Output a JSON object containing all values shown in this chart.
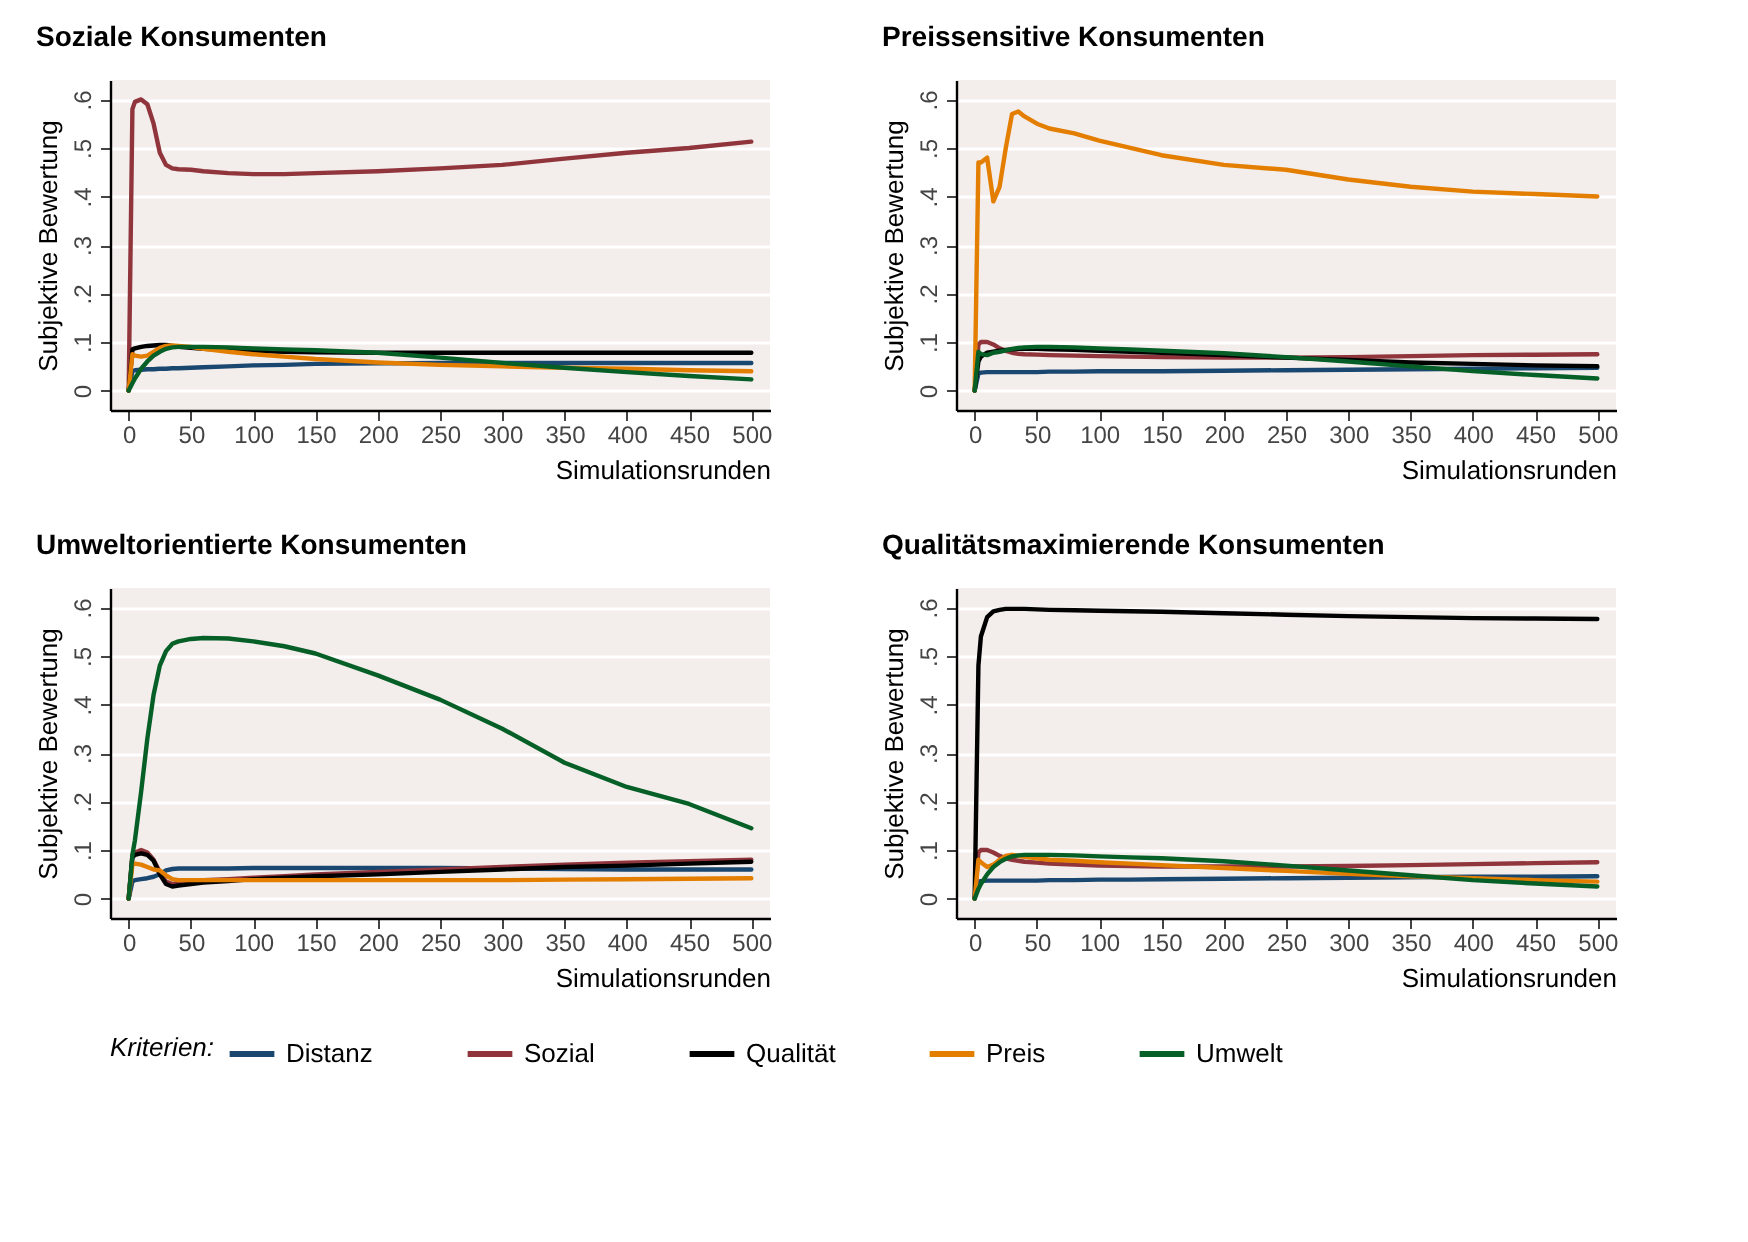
{
  "chart_data": [
    {
      "type": "line",
      "title": "Soziale Konsumenten",
      "xlabel": "Simulationsrunden",
      "ylabel": "Subjektive Bewertung",
      "xlim": [
        -15,
        515
      ],
      "ylim": [
        -0.04,
        0.64
      ],
      "xticks": [
        0,
        50,
        100,
        150,
        200,
        250,
        300,
        350,
        400,
        450,
        500
      ],
      "yticks": [
        {
          "value": 0,
          "label": "0"
        },
        {
          "value": 0.1,
          "label": ".1"
        },
        {
          "value": 0.2,
          "label": ".2"
        },
        {
          "value": 0.3,
          "label": ".3"
        },
        {
          "value": 0.4,
          "label": ".4"
        },
        {
          "value": 0.5,
          "label": ".5"
        },
        {
          "value": 0.6,
          "label": ".6"
        }
      ],
      "grid": "y",
      "legend": "bottom",
      "legend_title": "Kriterien:",
      "x": [
        0,
        3,
        5,
        10,
        15,
        20,
        25,
        30,
        35,
        40,
        50,
        60,
        80,
        100,
        125,
        150,
        200,
        250,
        300,
        350,
        400,
        450,
        500
      ],
      "series": [
        {
          "name": "Distanz",
          "color": "#1a476f",
          "values": [
            0,
            0.04,
            0.042,
            0.043,
            0.044,
            0.044,
            0.045,
            0.045,
            0.046,
            0.046,
            0.047,
            0.048,
            0.05,
            0.052,
            0.053,
            0.055,
            0.056,
            0.057,
            0.057,
            0.057,
            0.057,
            0.057,
            0.057
          ]
        },
        {
          "name": "Sozial",
          "color": "#90353b",
          "values": [
            0,
            0.58,
            0.595,
            0.6,
            0.59,
            0.55,
            0.49,
            0.465,
            0.458,
            0.456,
            0.455,
            0.452,
            0.448,
            0.446,
            0.446,
            0.448,
            0.452,
            0.458,
            0.465,
            0.478,
            0.49,
            0.5,
            0.513
          ]
        },
        {
          "name": "Qualität",
          "color": "#000000",
          "values": [
            0,
            0.085,
            0.087,
            0.09,
            0.092,
            0.093,
            0.094,
            0.094,
            0.092,
            0.09,
            0.088,
            0.086,
            0.084,
            0.082,
            0.08,
            0.079,
            0.078,
            0.078,
            0.078,
            0.078,
            0.078,
            0.078,
            0.078
          ]
        },
        {
          "name": "Preis",
          "color": "#e37e00",
          "values": [
            0,
            0.075,
            0.072,
            0.07,
            0.072,
            0.08,
            0.088,
            0.092,
            0.093,
            0.092,
            0.09,
            0.086,
            0.08,
            0.075,
            0.07,
            0.065,
            0.058,
            0.053,
            0.05,
            0.047,
            0.045,
            0.042,
            0.04
          ]
        },
        {
          "name": "Umwelt",
          "color": "#055f26",
          "values": [
            0,
            0.015,
            0.025,
            0.045,
            0.06,
            0.072,
            0.08,
            0.086,
            0.089,
            0.09,
            0.09,
            0.09,
            0.089,
            0.087,
            0.085,
            0.083,
            0.078,
            0.068,
            0.057,
            0.047,
            0.038,
            0.03,
            0.023
          ]
        }
      ]
    },
    {
      "type": "line",
      "title": "Preissensitive Konsumenten",
      "xlabel": "Simulationsrunden",
      "ylabel": "Subjektive Bewertung",
      "xlim": [
        -15,
        515
      ],
      "ylim": [
        -0.04,
        0.64
      ],
      "xticks": [
        0,
        50,
        100,
        150,
        200,
        250,
        300,
        350,
        400,
        450,
        500
      ],
      "yticks": [
        {
          "value": 0,
          "label": "0"
        },
        {
          "value": 0.1,
          "label": ".1"
        },
        {
          "value": 0.2,
          "label": ".2"
        },
        {
          "value": 0.3,
          "label": ".3"
        },
        {
          "value": 0.4,
          "label": ".4"
        },
        {
          "value": 0.5,
          "label": ".5"
        },
        {
          "value": 0.6,
          "label": ".6"
        }
      ],
      "grid": "y",
      "legend": "bottom",
      "x": [
        0,
        3,
        5,
        10,
        15,
        20,
        25,
        30,
        35,
        40,
        50,
        60,
        80,
        100,
        125,
        150,
        200,
        250,
        300,
        350,
        400,
        450,
        500
      ],
      "series": [
        {
          "name": "Distanz",
          "color": "#1a476f",
          "values": [
            0,
            0.035,
            0.037,
            0.038,
            0.038,
            0.038,
            0.038,
            0.038,
            0.038,
            0.038,
            0.038,
            0.039,
            0.039,
            0.04,
            0.04,
            0.04,
            0.041,
            0.042,
            0.043,
            0.044,
            0.045,
            0.046,
            0.047
          ]
        },
        {
          "name": "Sozial",
          "color": "#90353b",
          "values": [
            0,
            0.095,
            0.1,
            0.1,
            0.095,
            0.087,
            0.082,
            0.078,
            0.076,
            0.075,
            0.074,
            0.073,
            0.072,
            0.071,
            0.07,
            0.069,
            0.068,
            0.068,
            0.069,
            0.071,
            0.073,
            0.074,
            0.075
          ]
        },
        {
          "name": "Qualität",
          "color": "#000000",
          "values": [
            0,
            0.06,
            0.07,
            0.078,
            0.08,
            0.082,
            0.084,
            0.085,
            0.086,
            0.086,
            0.086,
            0.085,
            0.084,
            0.082,
            0.08,
            0.078,
            0.073,
            0.068,
            0.063,
            0.058,
            0.055,
            0.052,
            0.05
          ]
        },
        {
          "name": "Preis",
          "color": "#e37e00",
          "values": [
            0,
            0.47,
            0.47,
            0.48,
            0.39,
            0.42,
            0.5,
            0.57,
            0.575,
            0.565,
            0.55,
            0.54,
            0.53,
            0.515,
            0.5,
            0.485,
            0.465,
            0.455,
            0.435,
            0.42,
            0.41,
            0.405,
            0.4
          ]
        },
        {
          "name": "Umwelt",
          "color": "#055f26",
          "values": [
            0,
            0.08,
            0.075,
            0.073,
            0.078,
            0.08,
            0.083,
            0.086,
            0.088,
            0.089,
            0.09,
            0.09,
            0.089,
            0.087,
            0.085,
            0.082,
            0.077,
            0.069,
            0.06,
            0.05,
            0.04,
            0.032,
            0.025
          ]
        }
      ]
    },
    {
      "type": "line",
      "title": "Umweltorientierte Konsumenten",
      "xlabel": "Simulationsrunden",
      "ylabel": "Subjektive Bewertung",
      "xlim": [
        -15,
        515
      ],
      "ylim": [
        -0.04,
        0.64
      ],
      "xticks": [
        0,
        50,
        100,
        150,
        200,
        250,
        300,
        350,
        400,
        450,
        500
      ],
      "yticks": [
        {
          "value": 0,
          "label": "0"
        },
        {
          "value": 0.1,
          "label": ".1"
        },
        {
          "value": 0.2,
          "label": ".2"
        },
        {
          "value": 0.3,
          "label": ".3"
        },
        {
          "value": 0.4,
          "label": ".4"
        },
        {
          "value": 0.5,
          "label": ".5"
        },
        {
          "value": 0.6,
          "label": ".6"
        }
      ],
      "grid": "y",
      "legend": "bottom",
      "x": [
        0,
        3,
        5,
        10,
        15,
        20,
        25,
        30,
        35,
        40,
        50,
        60,
        80,
        100,
        125,
        150,
        200,
        250,
        300,
        350,
        400,
        450,
        500
      ],
      "series": [
        {
          "name": "Distanz",
          "color": "#1a476f",
          "values": [
            0,
            0.035,
            0.038,
            0.04,
            0.042,
            0.045,
            0.05,
            0.058,
            0.061,
            0.062,
            0.062,
            0.062,
            0.062,
            0.063,
            0.063,
            0.063,
            0.063,
            0.063,
            0.062,
            0.061,
            0.06,
            0.06,
            0.06
          ]
        },
        {
          "name": "Sozial",
          "color": "#90353b",
          "values": [
            0,
            0.09,
            0.095,
            0.1,
            0.095,
            0.08,
            0.055,
            0.035,
            0.03,
            0.032,
            0.035,
            0.038,
            0.04,
            0.043,
            0.046,
            0.05,
            0.055,
            0.06,
            0.065,
            0.07,
            0.074,
            0.077,
            0.08
          ]
        },
        {
          "name": "Qualität",
          "color": "#000000",
          "values": [
            0,
            0.085,
            0.09,
            0.093,
            0.09,
            0.078,
            0.05,
            0.03,
            0.025,
            0.027,
            0.03,
            0.033,
            0.036,
            0.04,
            0.043,
            0.046,
            0.05,
            0.055,
            0.06,
            0.065,
            0.068,
            0.072,
            0.076
          ]
        },
        {
          "name": "Preis",
          "color": "#e37e00",
          "values": [
            0,
            0.07,
            0.072,
            0.07,
            0.065,
            0.06,
            0.058,
            0.048,
            0.04,
            0.038,
            0.038,
            0.038,
            0.038,
            0.038,
            0.038,
            0.038,
            0.038,
            0.038,
            0.038,
            0.039,
            0.04,
            0.041,
            0.042
          ]
        },
        {
          "name": "Umwelt",
          "color": "#055f26",
          "values": [
            0,
            0.09,
            0.12,
            0.22,
            0.33,
            0.42,
            0.48,
            0.51,
            0.525,
            0.53,
            0.535,
            0.537,
            0.536,
            0.53,
            0.52,
            0.505,
            0.46,
            0.41,
            0.35,
            0.28,
            0.23,
            0.195,
            0.145
          ]
        }
      ]
    },
    {
      "type": "line",
      "title": "Qualitätsmaximierende Konsumenten",
      "xlabel": "Simulationsrunden",
      "ylabel": "Subjektive Bewertung",
      "xlim": [
        -15,
        515
      ],
      "ylim": [
        -0.04,
        0.64
      ],
      "xticks": [
        0,
        50,
        100,
        150,
        200,
        250,
        300,
        350,
        400,
        450,
        500
      ],
      "yticks": [
        {
          "value": 0,
          "label": "0"
        },
        {
          "value": 0.1,
          "label": ".1"
        },
        {
          "value": 0.2,
          "label": ".2"
        },
        {
          "value": 0.3,
          "label": ".3"
        },
        {
          "value": 0.4,
          "label": ".4"
        },
        {
          "value": 0.5,
          "label": ".5"
        },
        {
          "value": 0.6,
          "label": ".6"
        }
      ],
      "grid": "y",
      "legend": "bottom",
      "x": [
        0,
        3,
        5,
        10,
        15,
        20,
        25,
        30,
        35,
        40,
        50,
        60,
        80,
        100,
        125,
        150,
        200,
        250,
        300,
        350,
        400,
        450,
        500
      ],
      "series": [
        {
          "name": "Distanz",
          "color": "#1a476f",
          "values": [
            0,
            0.035,
            0.036,
            0.037,
            0.037,
            0.037,
            0.037,
            0.037,
            0.037,
            0.037,
            0.037,
            0.038,
            0.038,
            0.039,
            0.039,
            0.04,
            0.041,
            0.042,
            0.043,
            0.044,
            0.045,
            0.045,
            0.046
          ]
        },
        {
          "name": "Sozial",
          "color": "#90353b",
          "values": [
            0,
            0.095,
            0.1,
            0.1,
            0.095,
            0.088,
            0.083,
            0.08,
            0.078,
            0.076,
            0.074,
            0.072,
            0.07,
            0.068,
            0.067,
            0.066,
            0.066,
            0.066,
            0.067,
            0.069,
            0.071,
            0.073,
            0.075
          ]
        },
        {
          "name": "Qualität",
          "color": "#000000",
          "values": [
            0,
            0.48,
            0.54,
            0.58,
            0.592,
            0.595,
            0.597,
            0.597,
            0.597,
            0.597,
            0.596,
            0.595,
            0.594,
            0.593,
            0.592,
            0.591,
            0.588,
            0.585,
            0.582,
            0.58,
            0.578,
            0.577,
            0.576
          ]
        },
        {
          "name": "Preis",
          "color": "#e37e00",
          "values": [
            0,
            0.08,
            0.075,
            0.065,
            0.07,
            0.08,
            0.088,
            0.09,
            0.088,
            0.086,
            0.083,
            0.08,
            0.078,
            0.075,
            0.072,
            0.069,
            0.063,
            0.057,
            0.051,
            0.046,
            0.042,
            0.038,
            0.035
          ]
        },
        {
          "name": "Umwelt",
          "color": "#055f26",
          "values": [
            0,
            0.02,
            0.03,
            0.05,
            0.065,
            0.075,
            0.082,
            0.087,
            0.089,
            0.09,
            0.09,
            0.09,
            0.089,
            0.087,
            0.085,
            0.083,
            0.077,
            0.068,
            0.058,
            0.048,
            0.038,
            0.031,
            0.025
          ]
        }
      ]
    }
  ]
}
